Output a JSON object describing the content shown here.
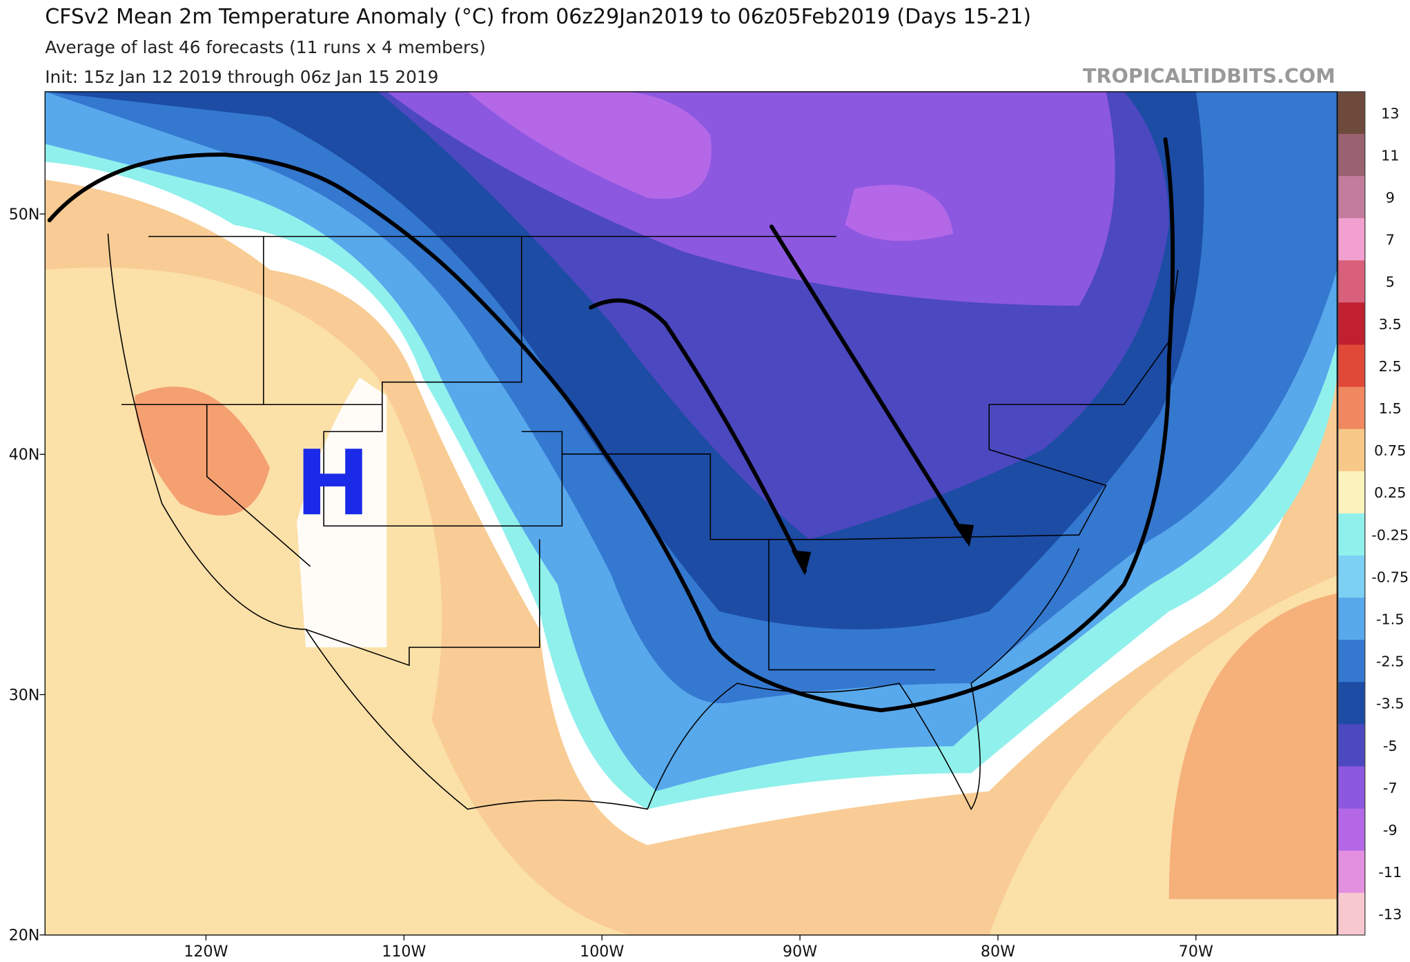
{
  "header": {
    "title": "CFSv2 Mean 2m Temperature Anomaly (°C) from 06z29Jan2019 to 06z05Feb2019 (Days 15-21)",
    "subtitle": "Average of last 46 forecasts (11 runs x 4 members)",
    "init": "Init: 15z Jan 12 2019 through 06z Jan 15 2019"
  },
  "watermark": "TROPICALTIDBITS.COM",
  "annotation": "H",
  "lat_labels": [
    "50N",
    "40N",
    "30N",
    "20N"
  ],
  "lon_labels": [
    "120W",
    "110W",
    "100W",
    "90W",
    "80W",
    "70W"
  ],
  "colorbar": {
    "labels": [
      13,
      11,
      9,
      7,
      5,
      3.5,
      2.5,
      1.5,
      0.75,
      0.25,
      -0.25,
      -0.75,
      -1.5,
      -2.5,
      -3.5,
      -5,
      -7,
      -9,
      -11,
      -13
    ],
    "colors": [
      "#6e4a3c",
      "#9a6270",
      "#c47c9c",
      "#f2a0d0",
      "#d8607a",
      "#c02030",
      "#e04838",
      "#f08860",
      "#f8c888",
      "#fdf3bc",
      "#90f0ec",
      "#7cd0f4",
      "#58a8ec",
      "#3478d0",
      "#1c4ca4",
      "#4c48c0",
      "#8c58e0",
      "#b468e8",
      "#e490e0",
      "#f8c8d0"
    ]
  }
}
